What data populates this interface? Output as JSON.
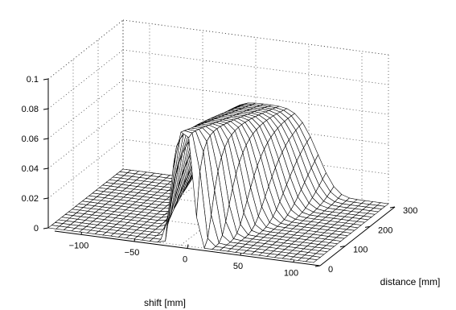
{
  "chart_data": {
    "type": "surface",
    "title": "",
    "xlabel": "shift [mm]",
    "ylabel": "distance [mm]",
    "zlabel": "",
    "xlim": [
      -125,
      125
    ],
    "ylim": [
      0,
      300
    ],
    "zlim": [
      0,
      0.1
    ],
    "x_ticks": [
      -100,
      -50,
      0,
      50,
      100
    ],
    "x_tick_labels": [
      "−100",
      "−50",
      "0",
      "50",
      "100"
    ],
    "y_ticks": [
      0,
      100,
      200,
      300
    ],
    "y_tick_labels": [
      "0",
      "100",
      "200",
      "300"
    ],
    "z_ticks": [
      0,
      0.02,
      0.04,
      0.06,
      0.08,
      0.1
    ],
    "z_tick_labels": [
      "0",
      "0.02",
      "0.04",
      "0.06",
      "0.08",
      "0.1"
    ],
    "grid": true,
    "mesh_color": "#000000",
    "face_color": "#ffffff",
    "grid_color": "#444444",
    "mesh": {
      "x_range": [
        -125,
        125
      ],
      "x_steps": 34,
      "y_range": [
        0,
        300
      ],
      "y_steps": 22
    },
    "surface_model": {
      "description_of_shape": "narrow peak near shift 0 that widens and flattens with distance",
      "peak_height_near": 0.076,
      "peak_height_far": 0.056,
      "width_near": 9,
      "width_far": 40,
      "center_near": 2,
      "center_far": 10
    }
  }
}
